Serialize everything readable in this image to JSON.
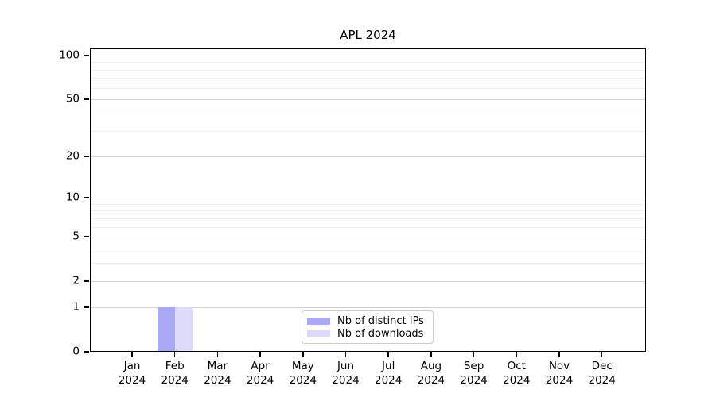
{
  "chart_data": {
    "type": "bar",
    "title": "APL 2024",
    "categories": [
      {
        "month": "Jan",
        "year": "2024"
      },
      {
        "month": "Feb",
        "year": "2024"
      },
      {
        "month": "Mar",
        "year": "2024"
      },
      {
        "month": "Apr",
        "year": "2024"
      },
      {
        "month": "May",
        "year": "2024"
      },
      {
        "month": "Jun",
        "year": "2024"
      },
      {
        "month": "Jul",
        "year": "2024"
      },
      {
        "month": "Aug",
        "year": "2024"
      },
      {
        "month": "Sep",
        "year": "2024"
      },
      {
        "month": "Oct",
        "year": "2024"
      },
      {
        "month": "Nov",
        "year": "2024"
      },
      {
        "month": "Dec",
        "year": "2024"
      }
    ],
    "series": [
      {
        "name": "Nb of distinct IPs",
        "color": "#a9a9f5",
        "values": [
          0,
          1,
          0,
          0,
          0,
          0,
          0,
          0,
          0,
          0,
          0,
          0
        ]
      },
      {
        "name": "Nb of downloads",
        "color": "#dcdcfa",
        "values": [
          0,
          1,
          0,
          0,
          0,
          0,
          0,
          0,
          0,
          0,
          0,
          0
        ]
      }
    ],
    "y_axis": {
      "scale": "log10(1+y)",
      "tick_values": [
        0,
        1,
        2,
        5,
        10,
        20,
        50,
        100
      ],
      "minor_grid_values": [
        3,
        4,
        6,
        7,
        8,
        9,
        30,
        40,
        60,
        70,
        80,
        90
      ],
      "range": [
        0,
        111
      ]
    },
    "x_axis": {
      "tick_label_format": "month over year"
    },
    "legend": {
      "position": "bottom-center-inside",
      "entries": [
        {
          "label": "Nb of distinct IPs",
          "color": "#a9a9f5"
        },
        {
          "label": "Nb of downloads",
          "color": "#dcdcfa"
        }
      ]
    },
    "grid": true,
    "colors": {
      "axis": "#000000",
      "grid_major": "#d3d3d3",
      "grid_minor": "#efefef",
      "legend_border": "#cccccc",
      "background": "#ffffff"
    }
  }
}
